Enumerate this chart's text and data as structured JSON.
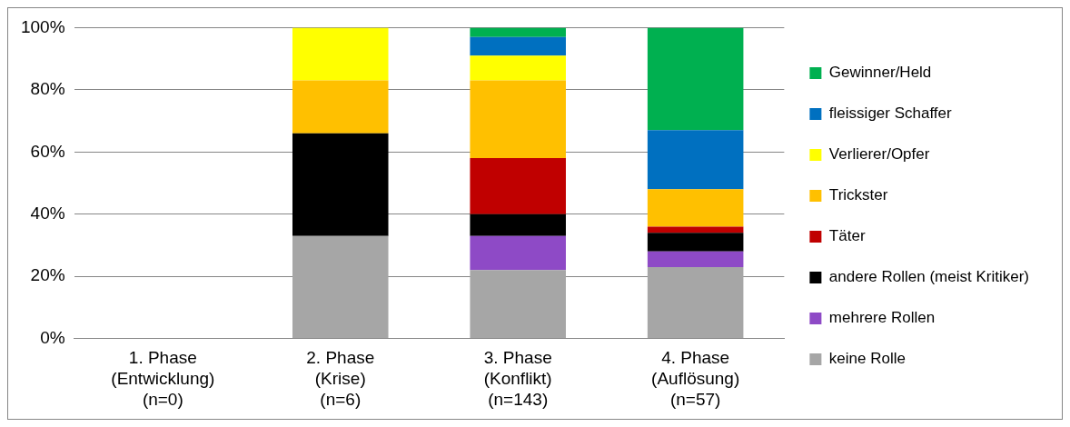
{
  "chart_data": {
    "type": "bar",
    "stacked": true,
    "categories": [
      "1. Phase\n(Entwicklung)\n(n=0)",
      "2. Phase\n(Krise)\n(n=6)",
      "3. Phase\n(Konflikt)\n(n=143)",
      "4. Phase\n(Auflösung)\n(n=57)"
    ],
    "series": [
      {
        "name": "keine Rolle",
        "color": "#a6a6a6",
        "values": [
          0,
          33,
          22,
          23
        ]
      },
      {
        "name": "mehrere Rollen",
        "color": "#8e4ac6",
        "values": [
          0,
          0,
          11,
          5
        ]
      },
      {
        "name": "andere Rollen (meist Kritiker)",
        "color": "#000000",
        "values": [
          0,
          33,
          7,
          6
        ]
      },
      {
        "name": "Täter",
        "color": "#c00000",
        "values": [
          0,
          0,
          18,
          2
        ]
      },
      {
        "name": "Trickster",
        "color": "#ffc000",
        "values": [
          0,
          17,
          25,
          12
        ]
      },
      {
        "name": "Verlierer/Opfer",
        "color": "#ffff00",
        "values": [
          0,
          17,
          8,
          0
        ]
      },
      {
        "name": "fleissiger Schaffer",
        "color": "#0070c0",
        "values": [
          0,
          0,
          6,
          19
        ]
      },
      {
        "name": "Gewinner/Held",
        "color": "#00b050",
        "values": [
          0,
          0,
          3,
          33
        ]
      }
    ],
    "ylim": [
      0,
      100
    ],
    "yticks": [
      {
        "value": 0,
        "label": "0%"
      },
      {
        "value": 20,
        "label": "20%"
      },
      {
        "value": 40,
        "label": "40%"
      },
      {
        "value": 60,
        "label": "60%"
      },
      {
        "value": 80,
        "label": "80%"
      },
      {
        "value": 100,
        "label": "100%"
      }
    ],
    "grid": "y",
    "legend": "right"
  }
}
